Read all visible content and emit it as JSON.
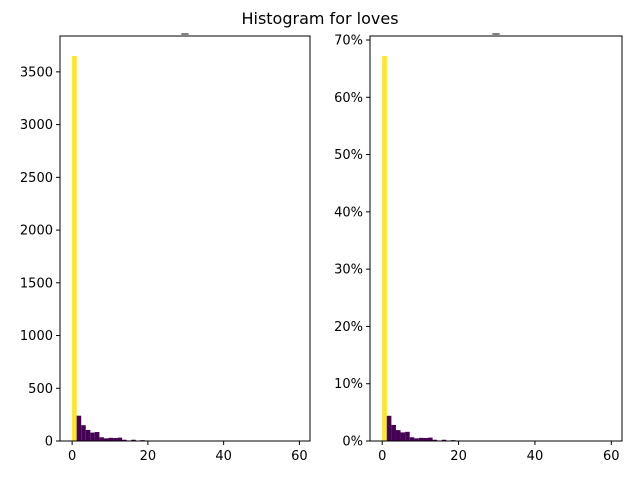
{
  "figure_title": "Histogram for loves",
  "chart_data": [
    {
      "type": "bar",
      "title": "_",
      "xlabel": "",
      "ylabel": "",
      "xlim": [
        -3.2,
        62.8
      ],
      "ylim": [
        0,
        3840
      ],
      "xticks": [
        0,
        20,
        40,
        60
      ],
      "yticks": [
        0,
        500,
        1000,
        1500,
        2000,
        2500,
        3000,
        3500
      ],
      "ytick_labels": [
        "0",
        "500",
        "1000",
        "1500",
        "2000",
        "2500",
        "3000",
        "3500"
      ],
      "bin_width": 1.2,
      "bins": [
        {
          "x0": 0,
          "value": 3650,
          "color": "#fde725"
        },
        {
          "x0": 1.2,
          "value": 240,
          "color": "#440154"
        },
        {
          "x0": 2.4,
          "value": 150,
          "color": "#440154"
        },
        {
          "x0": 3.6,
          "value": 105,
          "color": "#440154"
        },
        {
          "x0": 4.8,
          "value": 80,
          "color": "#440154"
        },
        {
          "x0": 6.0,
          "value": 85,
          "color": "#440154"
        },
        {
          "x0": 7.2,
          "value": 35,
          "color": "#440154"
        },
        {
          "x0": 8.4,
          "value": 25,
          "color": "#440154"
        },
        {
          "x0": 9.6,
          "value": 30,
          "color": "#440154"
        },
        {
          "x0": 10.8,
          "value": 28,
          "color": "#440154"
        },
        {
          "x0": 12.0,
          "value": 32,
          "color": "#440154"
        },
        {
          "x0": 13.2,
          "value": 12,
          "color": "#440154"
        },
        {
          "x0": 14.4,
          "value": 5,
          "color": "#440154"
        },
        {
          "x0": 15.6,
          "value": 12,
          "color": "#440154"
        },
        {
          "x0": 16.8,
          "value": 4,
          "color": "#440154"
        },
        {
          "x0": 18.0,
          "value": 8,
          "color": "#440154"
        },
        {
          "x0": 19.2,
          "value": 2,
          "color": "#440154"
        }
      ]
    },
    {
      "type": "bar",
      "title": "_",
      "xlabel": "",
      "ylabel": "",
      "xlim": [
        -3.2,
        62.8
      ],
      "ylim": [
        0,
        0.707
      ],
      "xticks": [
        0,
        20,
        40,
        60
      ],
      "yticks": [
        0,
        0.1,
        0.2,
        0.3,
        0.4,
        0.5,
        0.6,
        0.7
      ],
      "ytick_labels": [
        "0%",
        "10%",
        "20%",
        "30%",
        "40%",
        "50%",
        "60%",
        "70%"
      ],
      "bin_width": 1.2,
      "bins": [
        {
          "x0": 0,
          "value": 0.672,
          "color": "#fde725"
        },
        {
          "x0": 1.2,
          "value": 0.044,
          "color": "#440154"
        },
        {
          "x0": 2.4,
          "value": 0.028,
          "color": "#440154"
        },
        {
          "x0": 3.6,
          "value": 0.019,
          "color": "#440154"
        },
        {
          "x0": 4.8,
          "value": 0.015,
          "color": "#440154"
        },
        {
          "x0": 6.0,
          "value": 0.016,
          "color": "#440154"
        },
        {
          "x0": 7.2,
          "value": 0.0065,
          "color": "#440154"
        },
        {
          "x0": 8.4,
          "value": 0.0046,
          "color": "#440154"
        },
        {
          "x0": 9.6,
          "value": 0.0055,
          "color": "#440154"
        },
        {
          "x0": 10.8,
          "value": 0.0052,
          "color": "#440154"
        },
        {
          "x0": 12.0,
          "value": 0.0059,
          "color": "#440154"
        },
        {
          "x0": 13.2,
          "value": 0.0022,
          "color": "#440154"
        },
        {
          "x0": 14.4,
          "value": 0.0009,
          "color": "#440154"
        },
        {
          "x0": 15.6,
          "value": 0.0022,
          "color": "#440154"
        },
        {
          "x0": 16.8,
          "value": 0.0007,
          "color": "#440154"
        },
        {
          "x0": 18.0,
          "value": 0.0015,
          "color": "#440154"
        },
        {
          "x0": 19.2,
          "value": 0.0004,
          "color": "#440154"
        }
      ]
    }
  ]
}
